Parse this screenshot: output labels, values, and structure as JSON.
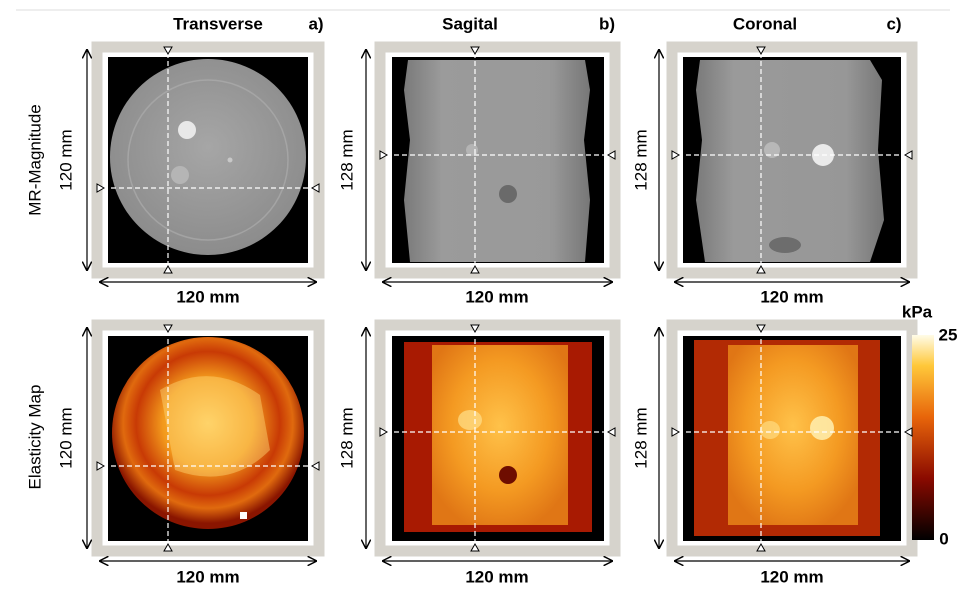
{
  "columns": [
    {
      "title": "Transverse",
      "letter": "a)"
    },
    {
      "title": "Sagital",
      "letter": "b)"
    },
    {
      "title": "Coronal",
      "letter": "c)"
    }
  ],
  "rows": [
    {
      "label": "MR-Magnitude",
      "panels": [
        {
          "height_label": "120 mm",
          "width_label": "120 mm"
        },
        {
          "height_label": "128 mm",
          "width_label": "120 mm"
        },
        {
          "height_label": "128 mm",
          "width_label": "120 mm"
        }
      ]
    },
    {
      "label": "Elasticity Map",
      "panels": [
        {
          "height_label": "120 mm",
          "width_label": "120 mm"
        },
        {
          "height_label": "128 mm",
          "width_label": "120 mm"
        },
        {
          "height_label": "128 mm",
          "width_label": "120 mm"
        }
      ]
    }
  ],
  "colorbar": {
    "unit": "kPa",
    "max_label": "25",
    "min_label": "0"
  }
}
